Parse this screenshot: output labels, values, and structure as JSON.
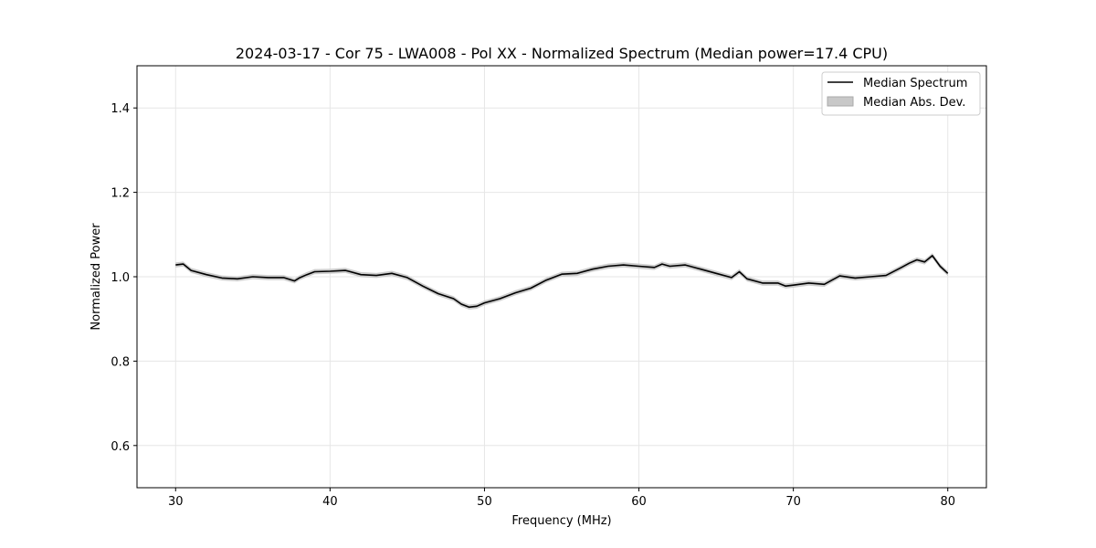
{
  "chart_data": {
    "type": "line",
    "title": "2024-03-17 - Cor 75 - LWA008 - Pol XX - Normalized Spectrum (Median power=17.4 CPU)",
    "xlabel": "Frequency (MHz)",
    "ylabel": "Normalized Power",
    "xlim": [
      27.5,
      82.5
    ],
    "ylim": [
      0.5,
      1.5
    ],
    "xticks": [
      30,
      40,
      50,
      60,
      70,
      80
    ],
    "yticks": [
      0.6,
      0.8,
      1.0,
      1.2,
      1.4
    ],
    "xtick_labels": [
      "30",
      "40",
      "50",
      "60",
      "70",
      "80"
    ],
    "ytick_labels": [
      "0.6",
      "0.8",
      "1.0",
      "1.2",
      "1.4"
    ],
    "grid": true,
    "legend_position": "top-right",
    "series": [
      {
        "name": "Median Spectrum",
        "color": "#000000",
        "x": [
          30,
          30.5,
          31,
          32,
          33,
          34,
          35,
          36,
          37,
          37.7,
          38,
          38.5,
          39,
          40,
          41,
          42,
          43,
          44,
          45,
          46,
          47,
          48,
          48.5,
          49,
          49.5,
          50,
          51,
          52,
          53,
          54,
          55,
          56,
          57,
          58,
          59,
          60,
          61,
          61.5,
          62,
          63,
          64,
          65,
          66,
          66.5,
          67,
          68,
          69,
          69.5,
          70,
          71,
          72,
          73,
          74,
          75,
          76,
          77,
          77.5,
          78,
          78.5,
          79,
          79.5,
          80
        ],
        "values": [
          1.028,
          1.03,
          1.015,
          1.005,
          0.997,
          0.995,
          1.0,
          0.998,
          0.998,
          0.99,
          0.997,
          1.005,
          1.012,
          1.013,
          1.015,
          1.005,
          1.003,
          1.008,
          0.998,
          0.978,
          0.96,
          0.948,
          0.935,
          0.928,
          0.93,
          0.938,
          0.948,
          0.962,
          0.973,
          0.992,
          1.006,
          1.008,
          1.018,
          1.025,
          1.028,
          1.025,
          1.022,
          1.03,
          1.025,
          1.028,
          1.018,
          1.008,
          0.998,
          1.012,
          0.995,
          0.985,
          0.985,
          0.978,
          0.98,
          0.985,
          0.982,
          1.002,
          0.997,
          1.0,
          1.003,
          1.022,
          1.032,
          1.04,
          1.035,
          1.05,
          1.025,
          1.008
        ]
      }
    ],
    "band": {
      "name": "Median Abs. Dev.",
      "color": "#c8c8c8",
      "halfwidth": 0.006
    }
  }
}
